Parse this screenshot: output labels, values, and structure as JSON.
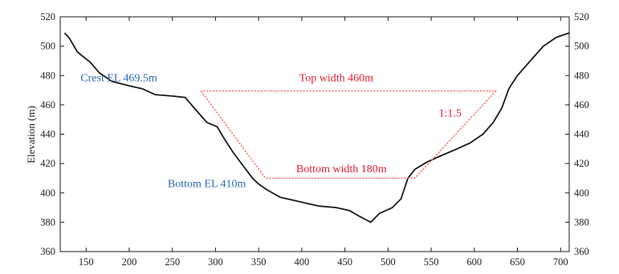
{
  "chart_data": {
    "type": "line",
    "title": "",
    "xlabel": "",
    "ylabel": "Elevation (m)",
    "xlim": [
      120,
      710
    ],
    "ylim": [
      360,
      520
    ],
    "x_ticks": [
      150,
      200,
      250,
      300,
      350,
      400,
      450,
      500,
      550,
      600,
      650,
      700
    ],
    "y_ticks": [
      360,
      380,
      400,
      420,
      440,
      460,
      480,
      500,
      520
    ],
    "grid": false,
    "series": [
      {
        "kind": "valley-profile",
        "color": "#1a1a1a",
        "points": [
          [
            125,
            509
          ],
          [
            130,
            506
          ],
          [
            140,
            496
          ],
          [
            155,
            489
          ],
          [
            165,
            482
          ],
          [
            180,
            476
          ],
          [
            200,
            473
          ],
          [
            215,
            471
          ],
          [
            230,
            467
          ],
          [
            250,
            466
          ],
          [
            265,
            465
          ],
          [
            275,
            458
          ],
          [
            290,
            448
          ],
          [
            302,
            445
          ],
          [
            310,
            437
          ],
          [
            320,
            428
          ],
          [
            330,
            420
          ],
          [
            343,
            410
          ],
          [
            350,
            406
          ],
          [
            360,
            402
          ],
          [
            375,
            397
          ],
          [
            390,
            395
          ],
          [
            405,
            393
          ],
          [
            420,
            391
          ],
          [
            440,
            390
          ],
          [
            455,
            388
          ],
          [
            467,
            384
          ],
          [
            480,
            380
          ],
          [
            490,
            386
          ],
          [
            505,
            390
          ],
          [
            515,
            396
          ],
          [
            523,
            410
          ],
          [
            531,
            416
          ],
          [
            545,
            421
          ],
          [
            560,
            425
          ],
          [
            580,
            430
          ],
          [
            595,
            434
          ],
          [
            610,
            440
          ],
          [
            622,
            448
          ],
          [
            632,
            458
          ],
          [
            640,
            471
          ],
          [
            650,
            480
          ],
          [
            665,
            490
          ],
          [
            680,
            500
          ],
          [
            695,
            506
          ],
          [
            710,
            509
          ]
        ]
      },
      {
        "kind": "dam-section-outline",
        "color": "#ff6666",
        "style": "dashed",
        "points": [
          [
            283,
            469.5
          ],
          [
            358,
            410
          ],
          [
            531,
            410
          ],
          [
            625,
            469.5
          ],
          [
            283,
            469.5
          ]
        ]
      }
    ],
    "annotations": [
      {
        "text": "Crest EL 469.5m",
        "color": "#2a6ab5",
        "x": 188,
        "y": 476
      },
      {
        "text": "Top width 460m",
        "color": "#e61e32",
        "x": 440,
        "y": 476
      },
      {
        "text": "1:1.5",
        "color": "#e61e32",
        "x": 572,
        "y": 452
      },
      {
        "text": "Bottom width 180m",
        "color": "#e61e32",
        "x": 446,
        "y": 414
      },
      {
        "text": "Bottom EL 410m",
        "color": "#2a6ab5",
        "x": 290,
        "y": 404
      }
    ]
  }
}
